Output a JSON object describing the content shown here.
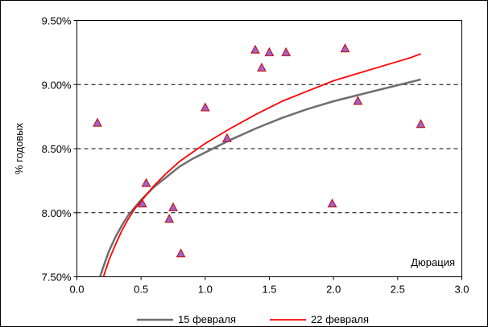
{
  "chart_data": {
    "type": "scatter",
    "title": "",
    "xlabel": "Дюрация",
    "ylabel": "% годовых",
    "xlim": [
      0,
      3
    ],
    "ylim": [
      7.5,
      9.5
    ],
    "x_ticks": [
      0,
      0.5,
      1,
      1.5,
      2,
      2.5,
      3
    ],
    "x_tick_labels": [
      "0.0",
      "0.5",
      "1.0",
      "1.5",
      "2.0",
      "2.5",
      "3.0"
    ],
    "y_ticks": [
      7.5,
      8.0,
      8.5,
      9.0,
      9.5
    ],
    "y_tick_labels": [
      "7.50%",
      "8.00%",
      "8.50%",
      "9.00%",
      "9.50%"
    ],
    "grid": "horizontal dashed",
    "legend_position": "bottom",
    "colors": {
      "marker_fill": "#9966cc",
      "marker_edge": "#cc0000",
      "series_15": "#6e6e6e",
      "series_22": "#ff0000",
      "grid": "#000000"
    },
    "points": [
      {
        "x": 0.16,
        "y": 8.7
      },
      {
        "x": 0.51,
        "y": 8.07
      },
      {
        "x": 0.54,
        "y": 8.23
      },
      {
        "x": 0.72,
        "y": 7.95
      },
      {
        "x": 0.75,
        "y": 8.04
      },
      {
        "x": 0.81,
        "y": 7.68
      },
      {
        "x": 1.0,
        "y": 8.82
      },
      {
        "x": 1.17,
        "y": 8.58
      },
      {
        "x": 1.39,
        "y": 9.27
      },
      {
        "x": 1.44,
        "y": 9.13
      },
      {
        "x": 1.5,
        "y": 9.25
      },
      {
        "x": 1.63,
        "y": 9.25
      },
      {
        "x": 1.99,
        "y": 8.07
      },
      {
        "x": 2.09,
        "y": 9.28
      },
      {
        "x": 2.19,
        "y": 8.87
      },
      {
        "x": 2.68,
        "y": 8.69
      }
    ],
    "series": [
      {
        "name": "15 февраля",
        "x": [
          0.18,
          0.2,
          0.25,
          0.3,
          0.35,
          0.4,
          0.45,
          0.5,
          0.6,
          0.7,
          0.8,
          0.9,
          1.0,
          1.2,
          1.4,
          1.6,
          1.8,
          2.0,
          2.2,
          2.4,
          2.6,
          2.68
        ],
        "values": [
          7.5,
          7.56,
          7.7,
          7.81,
          7.9,
          7.98,
          8.04,
          8.1,
          8.2,
          8.28,
          8.36,
          8.42,
          8.47,
          8.57,
          8.66,
          8.74,
          8.81,
          8.87,
          8.92,
          8.97,
          9.02,
          9.04
        ]
      },
      {
        "name": "22 февраля",
        "x": [
          0.2,
          0.25,
          0.3,
          0.35,
          0.4,
          0.45,
          0.5,
          0.6,
          0.7,
          0.8,
          0.9,
          1.0,
          1.2,
          1.4,
          1.6,
          1.8,
          2.0,
          2.2,
          2.4,
          2.6,
          2.68
        ],
        "values": [
          7.48,
          7.63,
          7.75,
          7.86,
          7.95,
          8.03,
          8.09,
          8.21,
          8.31,
          8.4,
          8.47,
          8.54,
          8.66,
          8.77,
          8.87,
          8.95,
          9.03,
          9.09,
          9.15,
          9.21,
          9.24
        ]
      }
    ]
  }
}
